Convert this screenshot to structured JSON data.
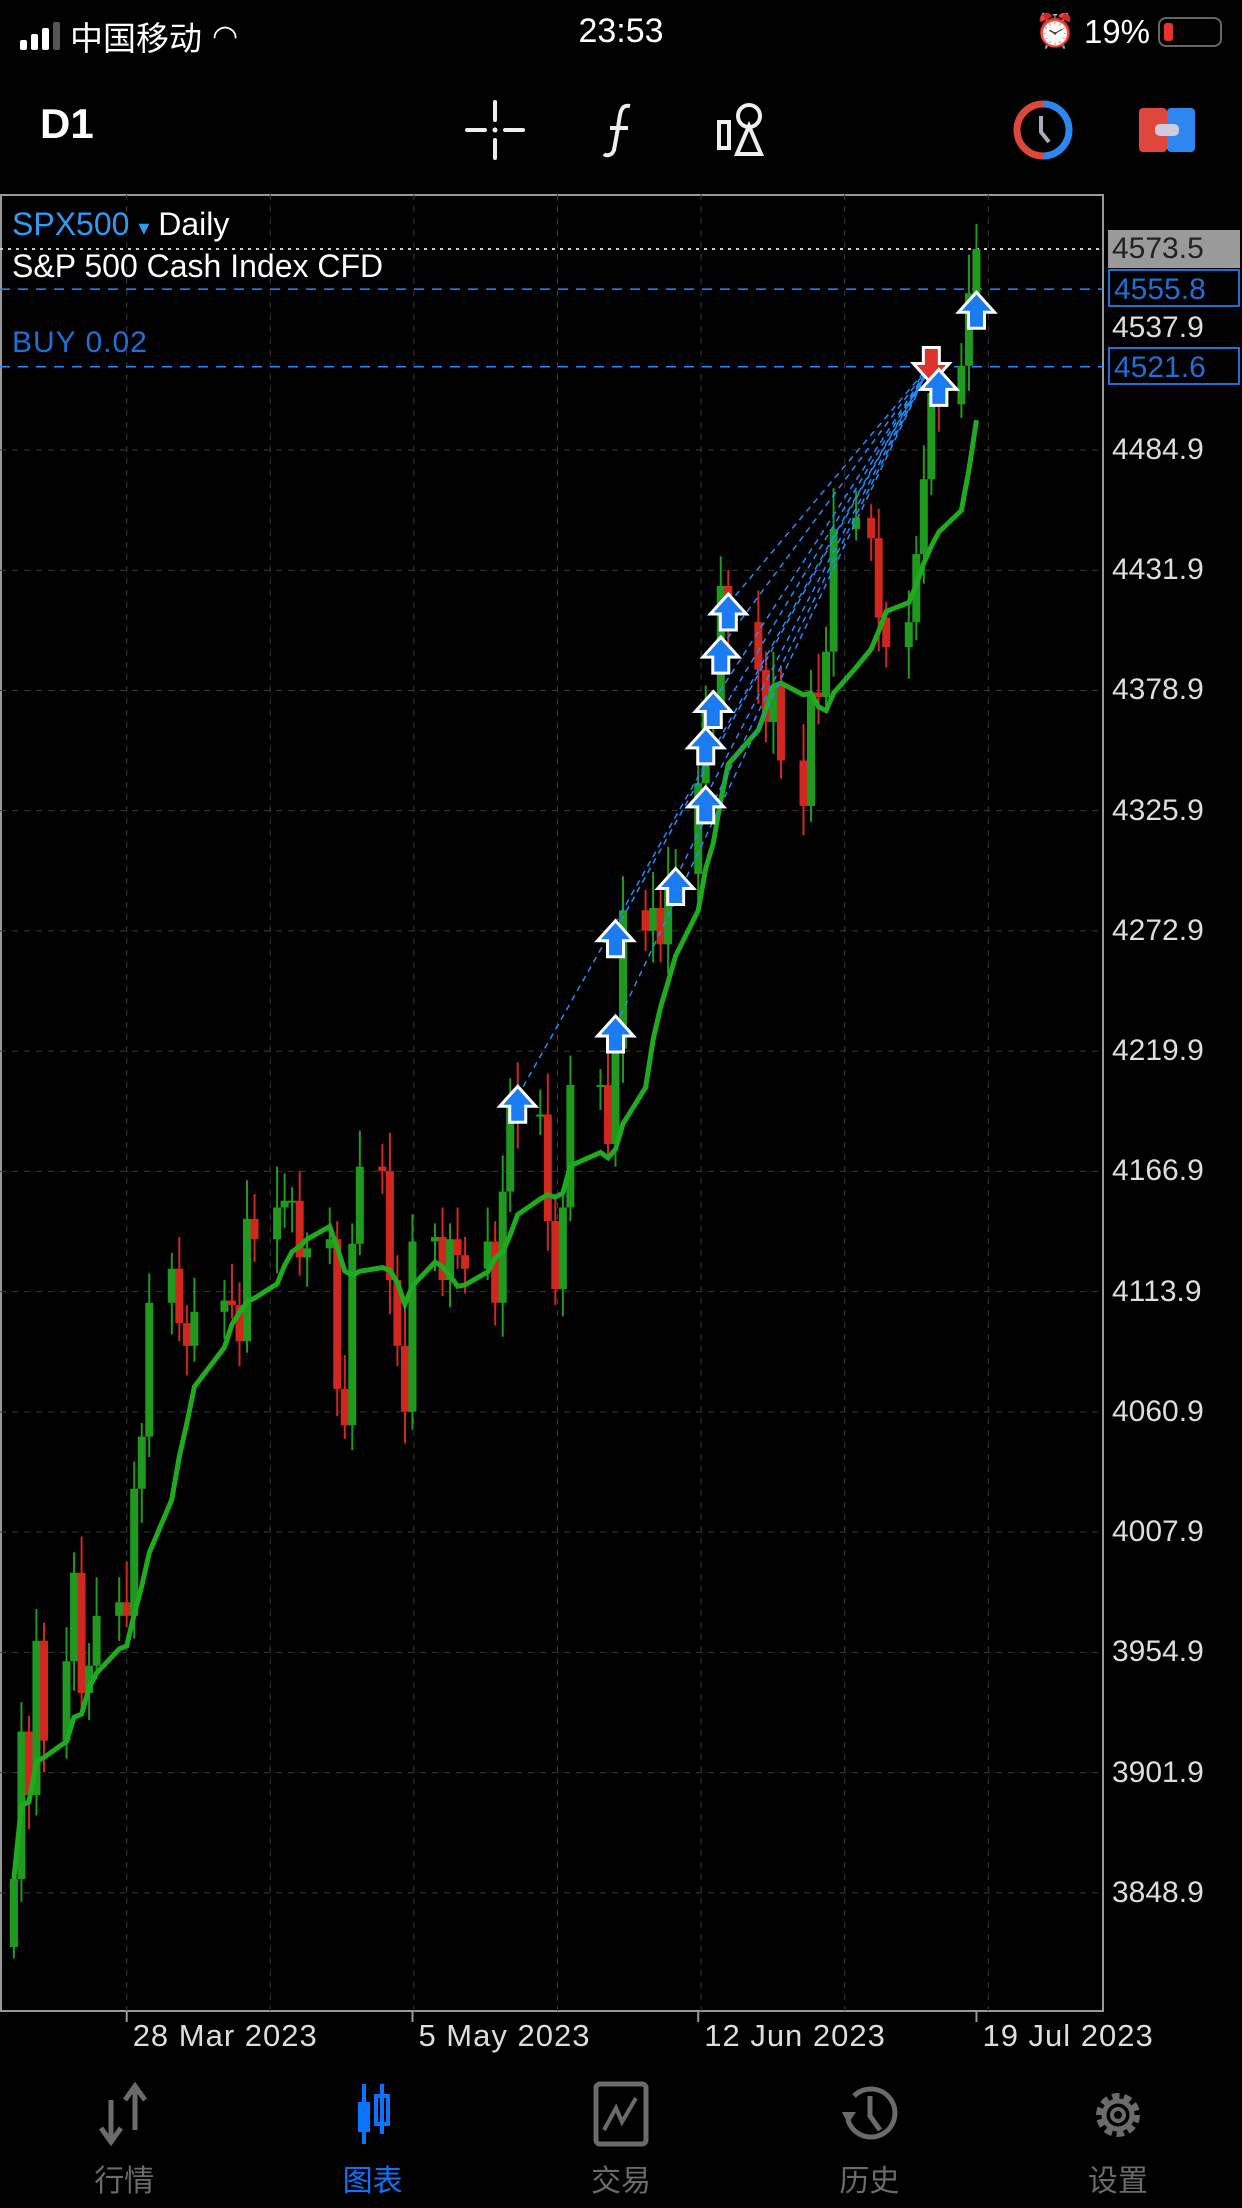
{
  "status_bar": {
    "carrier": "中国移动",
    "time": "23:53",
    "battery": "19%"
  },
  "toolbar": {
    "timeframe": "D1",
    "icons": [
      "crosshair-icon",
      "indicators-f-icon",
      "objects-icon",
      "one-click-trading-icon",
      "trade-panel-icon"
    ]
  },
  "chart": {
    "symbol": "SPX500",
    "symbol_arrow": "▾",
    "period": "Daily",
    "description": "S&P 500 Cash Index CFD",
    "position_label": "BUY 0.02",
    "price_labels": {
      "current": "4573.5",
      "tp": "4555.8",
      "level": "4537.9",
      "entry": "4521.6"
    },
    "colors": {
      "up": "#1f9a1f",
      "down": "#d0281e",
      "ma": "#1faa1f",
      "trade_line": "#1f8cff",
      "grid": "#3a3a3a"
    }
  },
  "chart_data": {
    "type": "candlestick",
    "ylim": [
      3822,
      4600
    ],
    "yticks": [
      "4484.9",
      "4431.9",
      "4378.9",
      "4325.9",
      "4272.9",
      "4219.9",
      "4166.9",
      "4113.9",
      "4060.9",
      "4007.9",
      "3954.9",
      "3901.9",
      "3848.9"
    ],
    "xticks": [
      "28 Mar 2023",
      "5 May 2023",
      "12 Jun 2023",
      "19 Jul 2023"
    ],
    "dates": [
      "2023-03-13",
      "2023-03-14",
      "2023-03-15",
      "2023-03-16",
      "2023-03-17",
      "2023-03-20",
      "2023-03-21",
      "2023-03-22",
      "2023-03-23",
      "2023-03-24",
      "2023-03-27",
      "2023-03-28",
      "2023-03-29",
      "2023-03-30",
      "2023-03-31",
      "2023-04-03",
      "2023-04-04",
      "2023-04-05",
      "2023-04-06",
      "2023-04-10",
      "2023-04-11",
      "2023-04-12",
      "2023-04-13",
      "2023-04-14",
      "2023-04-17",
      "2023-04-18",
      "2023-04-19",
      "2023-04-20",
      "2023-04-21",
      "2023-04-24",
      "2023-04-25",
      "2023-04-26",
      "2023-04-27",
      "2023-04-28",
      "2023-05-01",
      "2023-05-02",
      "2023-05-03",
      "2023-05-04",
      "2023-05-05",
      "2023-05-08",
      "2023-05-09",
      "2023-05-10",
      "2023-05-11",
      "2023-05-12",
      "2023-05-15",
      "2023-05-16",
      "2023-05-17",
      "2023-05-18",
      "2023-05-19",
      "2023-05-22",
      "2023-05-23",
      "2023-05-24",
      "2023-05-25",
      "2023-05-26",
      "2023-05-30",
      "2023-05-31",
      "2023-06-01",
      "2023-06-02",
      "2023-06-05",
      "2023-06-06",
      "2023-06-07",
      "2023-06-08",
      "2023-06-09",
      "2023-06-12",
      "2023-06-13",
      "2023-06-14",
      "2023-06-15",
      "2023-06-16",
      "2023-06-20",
      "2023-06-21",
      "2023-06-22",
      "2023-06-23",
      "2023-06-26",
      "2023-06-27",
      "2023-06-28",
      "2023-06-29",
      "2023-06-30",
      "2023-07-03",
      "2023-07-05",
      "2023-07-06",
      "2023-07-07",
      "2023-07-10",
      "2023-07-11",
      "2023-07-12",
      "2023-07-13",
      "2023-07-14",
      "2023-07-17",
      "2023-07-18",
      "2023-07-19"
    ],
    "closes": [
      3855,
      3920,
      3892,
      3960,
      3916,
      3951,
      3990,
      3937,
      3949,
      3971,
      3977,
      3971,
      4027,
      4050,
      4109,
      4124,
      4100,
      4090,
      4105,
      4110,
      4108,
      4092,
      4146,
      4137,
      4151,
      4154,
      4154,
      4129,
      4133,
      4137,
      4071,
      4055,
      4135,
      4169,
      4167,
      4119,
      4090,
      4061,
      4136,
      4138,
      4119,
      4137,
      4130,
      4124,
      4136,
      4109,
      4158,
      4198,
      4191,
      4192,
      4145,
      4115,
      4151,
      4205,
      4205,
      4179,
      4221,
      4282,
      4273,
      4283,
      4267,
      4293,
      4298,
      4338,
      4369,
      4372,
      4425,
      4409,
      4388,
      4365,
      4381,
      4348,
      4328,
      4378,
      4376,
      4396,
      4450,
      4455,
      4446,
      4411,
      4398,
      4409,
      4439,
      4472,
      4510,
      4505,
      4522,
      4554,
      4573.5
    ],
    "buy_trades": [
      [
        "2023-05-19",
        4200
      ],
      [
        "2023-06-01",
        4231
      ],
      [
        "2023-06-01",
        4273
      ],
      [
        "2023-06-09",
        4296
      ],
      [
        "2023-06-13",
        4332
      ],
      [
        "2023-06-13",
        4358
      ],
      [
        "2023-06-14",
        4374
      ],
      [
        "2023-06-15",
        4398
      ],
      [
        "2023-06-16",
        4417
      ],
      [
        "2023-07-14",
        4516
      ],
      [
        "2023-07-19",
        4550
      ]
    ],
    "sell_trades": [
      [
        "2023-07-13",
        4523
      ]
    ],
    "lines": {
      "current": 4573.5,
      "tp": 4555.8,
      "entry": 4521.6
    }
  },
  "nav": [
    {
      "label": "行情",
      "icon": "quotes-arrows-icon"
    },
    {
      "label": "图表",
      "icon": "chart-candles-icon",
      "active": true
    },
    {
      "label": "交易",
      "icon": "trade-icon"
    },
    {
      "label": "历史",
      "icon": "history-icon"
    },
    {
      "label": "设置",
      "icon": "settings-gear-icon"
    }
  ]
}
